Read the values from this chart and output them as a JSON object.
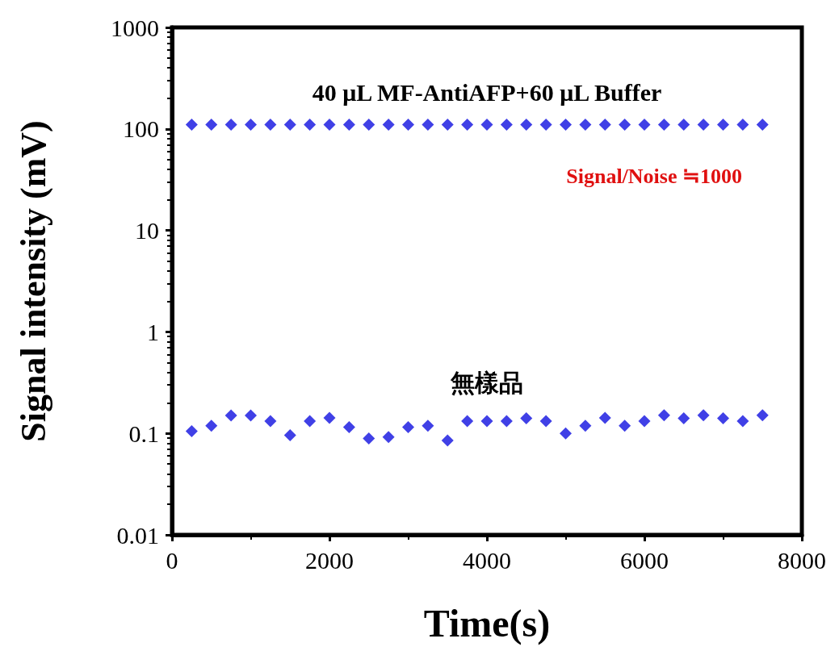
{
  "chart_data": {
    "type": "scatter",
    "xlabel": "Time(s)",
    "ylabel": "Signal intensity (mV)",
    "x": [
      250,
      500,
      750,
      1000,
      1250,
      1500,
      1750,
      2000,
      2250,
      2500,
      2750,
      3000,
      3250,
      3500,
      3750,
      4000,
      4250,
      4500,
      4750,
      5000,
      5250,
      5500,
      5750,
      6000,
      6250,
      6500,
      6750,
      7000,
      7250,
      7500
    ],
    "series": [
      {
        "name": "40 μL MF-AntiAFP+60 μL Buffer",
        "color": "#1010e0",
        "values": [
          110,
          110,
          110,
          110,
          110,
          110,
          110,
          110,
          110,
          110,
          110,
          110,
          110,
          110,
          110,
          110,
          110,
          110,
          110,
          110,
          110,
          110,
          110,
          110,
          110,
          110,
          110,
          110,
          110,
          110
        ]
      },
      {
        "name": "無樣品",
        "color": "#1010e0",
        "values": [
          0.105,
          0.119,
          0.15,
          0.15,
          0.132,
          0.096,
          0.132,
          0.142,
          0.115,
          0.089,
          0.092,
          0.115,
          0.119,
          0.085,
          0.132,
          0.132,
          0.132,
          0.141,
          0.132,
          0.1,
          0.119,
          0.142,
          0.119,
          0.132,
          0.151,
          0.141,
          0.151,
          0.141,
          0.132,
          0.151
        ]
      }
    ],
    "annotations": [
      "Signal/Noise ≒1000"
    ],
    "xlim": [
      0,
      8000
    ],
    "xticks": [
      0,
      2000,
      4000,
      6000,
      8000
    ],
    "ylim": [
      0.01,
      1000
    ],
    "yticks": [
      0.01,
      0.1,
      1,
      10,
      100,
      1000
    ],
    "log": "y",
    "grid": false,
    "legend": false,
    "marker": "diamond"
  }
}
